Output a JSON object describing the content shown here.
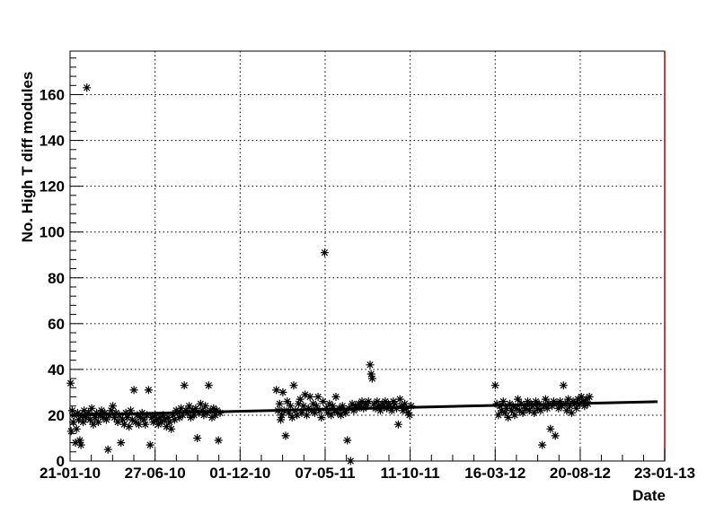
{
  "chart_data": {
    "type": "scatter",
    "xlabel": "Date",
    "ylabel": "No. High T diff modules",
    "x_tick_labels": [
      "21-01-10",
      "27-06-10",
      "01-12-10",
      "07-05-11",
      "11-10-11",
      "16-03-12",
      "20-08-12",
      "23-01-13"
    ],
    "x_ticks": [
      "2010-01-21",
      "2010-06-27",
      "2010-12-01",
      "2011-05-07",
      "2011-10-11",
      "2012-03-16",
      "2012-08-20",
      "2013-01-23"
    ],
    "xlim": [
      "2010-01-21",
      "2013-01-23"
    ],
    "y_ticks": [
      0,
      20,
      40,
      60,
      80,
      100,
      120,
      140,
      160
    ],
    "ylim": [
      0,
      179
    ],
    "grid": true,
    "marker": "*",
    "series": [
      {
        "points": [
          [
            "2010-01-22",
            34
          ],
          [
            "2010-01-23",
            13
          ],
          [
            "2010-01-25",
            22
          ],
          [
            "2010-01-27",
            17
          ],
          [
            "2010-01-29",
            20
          ],
          [
            "2010-01-31",
            8
          ],
          [
            "2010-02-02",
            14
          ],
          [
            "2010-02-04",
            21
          ],
          [
            "2010-02-06",
            18
          ],
          [
            "2010-02-08",
            9
          ],
          [
            "2010-02-10",
            7
          ],
          [
            "2010-02-12",
            20
          ],
          [
            "2010-02-14",
            17
          ],
          [
            "2010-02-16",
            22
          ],
          [
            "2010-02-19",
            19
          ],
          [
            "2010-02-21",
            163
          ],
          [
            "2010-02-24",
            21
          ],
          [
            "2010-02-27",
            18
          ],
          [
            "2010-03-02",
            23
          ],
          [
            "2010-03-05",
            16
          ],
          [
            "2010-03-08",
            19
          ],
          [
            "2010-03-11",
            21
          ],
          [
            "2010-03-14",
            17
          ],
          [
            "2010-03-17",
            20
          ],
          [
            "2010-03-20",
            22
          ],
          [
            "2010-03-23",
            19
          ],
          [
            "2010-03-26",
            21
          ],
          [
            "2010-03-29",
            18
          ],
          [
            "2010-04-01",
            5
          ],
          [
            "2010-04-04",
            20
          ],
          [
            "2010-04-07",
            22
          ],
          [
            "2010-04-10",
            24
          ],
          [
            "2010-04-13",
            19
          ],
          [
            "2010-04-16",
            21
          ],
          [
            "2010-04-19",
            17
          ],
          [
            "2010-04-22",
            20
          ],
          [
            "2010-04-25",
            8
          ],
          [
            "2010-04-28",
            18
          ],
          [
            "2010-05-01",
            16
          ],
          [
            "2010-05-04",
            21
          ],
          [
            "2010-05-07",
            19
          ],
          [
            "2010-05-10",
            15
          ],
          [
            "2010-05-13",
            22
          ],
          [
            "2010-05-16",
            18
          ],
          [
            "2010-05-19",
            31
          ],
          [
            "2010-05-22",
            17
          ],
          [
            "2010-05-25",
            20
          ],
          [
            "2010-05-28",
            16
          ],
          [
            "2010-05-31",
            19
          ],
          [
            "2010-06-03",
            21
          ],
          [
            "2010-06-06",
            18
          ],
          [
            "2010-06-09",
            16
          ],
          [
            "2010-06-12",
            20
          ],
          [
            "2010-06-15",
            31
          ],
          [
            "2010-06-18",
            7
          ],
          [
            "2010-06-21",
            19
          ],
          [
            "2010-06-24",
            17
          ],
          [
            "2010-06-27",
            20
          ],
          [
            "2010-06-30",
            18
          ],
          [
            "2010-07-03",
            16
          ],
          [
            "2010-07-06",
            19
          ],
          [
            "2010-07-09",
            17
          ],
          [
            "2010-07-12",
            20
          ],
          [
            "2010-07-15",
            18
          ],
          [
            "2010-07-18",
            15
          ],
          [
            "2010-07-21",
            19
          ],
          [
            "2010-07-24",
            17
          ],
          [
            "2010-07-27",
            14
          ],
          [
            "2010-07-30",
            20
          ],
          [
            "2010-08-02",
            18
          ],
          [
            "2010-08-05",
            22
          ],
          [
            "2010-08-08",
            21
          ],
          [
            "2010-08-11",
            19
          ],
          [
            "2010-08-14",
            23
          ],
          [
            "2010-08-17",
            20
          ],
          [
            "2010-08-20",
            33
          ],
          [
            "2010-08-23",
            22
          ],
          [
            "2010-08-26",
            21
          ],
          [
            "2010-08-29",
            24
          ],
          [
            "2010-09-01",
            19
          ],
          [
            "2010-09-04",
            22
          ],
          [
            "2010-09-07",
            20
          ],
          [
            "2010-09-10",
            23
          ],
          [
            "2010-09-13",
            10
          ],
          [
            "2010-09-16",
            21
          ],
          [
            "2010-09-19",
            25
          ],
          [
            "2010-09-22",
            22
          ],
          [
            "2010-09-25",
            20
          ],
          [
            "2010-09-28",
            24
          ],
          [
            "2010-10-01",
            21
          ],
          [
            "2010-10-04",
            33
          ],
          [
            "2010-10-07",
            22
          ],
          [
            "2010-10-10",
            19
          ],
          [
            "2010-10-13",
            23
          ],
          [
            "2010-10-16",
            20
          ],
          [
            "2010-10-19",
            22
          ],
          [
            "2010-10-22",
            9
          ],
          [
            "2010-10-25",
            21
          ],
          [
            "2011-02-06",
            31
          ],
          [
            "2011-02-09",
            22
          ],
          [
            "2011-02-12",
            25
          ],
          [
            "2011-02-14",
            18
          ],
          [
            "2011-02-16",
            20
          ],
          [
            "2011-02-18",
            30
          ],
          [
            "2011-02-20",
            22
          ],
          [
            "2011-02-23",
            11
          ],
          [
            "2011-02-26",
            26
          ],
          [
            "2011-03-01",
            21
          ],
          [
            "2011-03-04",
            24
          ],
          [
            "2011-03-07",
            19
          ],
          [
            "2011-03-10",
            33
          ],
          [
            "2011-03-13",
            22
          ],
          [
            "2011-03-16",
            20
          ],
          [
            "2011-03-19",
            25
          ],
          [
            "2011-03-22",
            27
          ],
          [
            "2011-03-25",
            21
          ],
          [
            "2011-03-28",
            24
          ],
          [
            "2011-03-31",
            29
          ],
          [
            "2011-04-03",
            20
          ],
          [
            "2011-04-06",
            23
          ],
          [
            "2011-04-09",
            28
          ],
          [
            "2011-04-12",
            22
          ],
          [
            "2011-04-15",
            25
          ],
          [
            "2011-04-18",
            21
          ],
          [
            "2011-04-21",
            24
          ],
          [
            "2011-04-24",
            28
          ],
          [
            "2011-04-27",
            22
          ],
          [
            "2011-04-30",
            19
          ],
          [
            "2011-05-03",
            26
          ],
          [
            "2011-05-06",
            91
          ],
          [
            "2011-05-09",
            23
          ],
          [
            "2011-05-12",
            21
          ],
          [
            "2011-05-15",
            25
          ],
          [
            "2011-05-18",
            20
          ],
          [
            "2011-05-21",
            24
          ],
          [
            "2011-05-24",
            22
          ],
          [
            "2011-05-27",
            28
          ],
          [
            "2011-05-30",
            21
          ],
          [
            "2011-06-02",
            23
          ],
          [
            "2011-06-05",
            20
          ],
          [
            "2011-06-08",
            24
          ],
          [
            "2011-06-11",
            22
          ],
          [
            "2011-06-14",
            21
          ],
          [
            "2011-06-17",
            9
          ],
          [
            "2011-06-20",
            23
          ],
          [
            "2011-06-23",
            0
          ],
          [
            "2011-06-26",
            25
          ],
          [
            "2011-06-29",
            22
          ],
          [
            "2011-07-02",
            24
          ],
          [
            "2011-07-05",
            23
          ],
          [
            "2011-07-08",
            25
          ],
          [
            "2011-07-11",
            24
          ],
          [
            "2011-07-14",
            26
          ],
          [
            "2011-07-17",
            23
          ],
          [
            "2011-07-20",
            25
          ],
          [
            "2011-07-23",
            24
          ],
          [
            "2011-07-26",
            26
          ],
          [
            "2011-07-29",
            42
          ],
          [
            "2011-07-31",
            38
          ],
          [
            "2011-08-02",
            36
          ],
          [
            "2011-08-05",
            25
          ],
          [
            "2011-08-08",
            23
          ],
          [
            "2011-08-11",
            26
          ],
          [
            "2011-08-14",
            24
          ],
          [
            "2011-08-17",
            22
          ],
          [
            "2011-08-20",
            25
          ],
          [
            "2011-08-23",
            24
          ],
          [
            "2011-08-26",
            26
          ],
          [
            "2011-08-29",
            23
          ],
          [
            "2011-09-01",
            25
          ],
          [
            "2011-09-04",
            24
          ],
          [
            "2011-09-07",
            22
          ],
          [
            "2011-09-10",
            26
          ],
          [
            "2011-09-13",
            25
          ],
          [
            "2011-09-16",
            23
          ],
          [
            "2011-09-19",
            16
          ],
          [
            "2011-09-22",
            27
          ],
          [
            "2011-09-25",
            24
          ],
          [
            "2011-09-28",
            22
          ],
          [
            "2011-10-01",
            25
          ],
          [
            "2011-10-04",
            23
          ],
          [
            "2011-10-07",
            21
          ],
          [
            "2011-10-10",
            20
          ],
          [
            "2011-10-13",
            24
          ],
          [
            "2012-03-16",
            33
          ],
          [
            "2012-03-19",
            25
          ],
          [
            "2012-03-22",
            20
          ],
          [
            "2012-03-25",
            24
          ],
          [
            "2012-03-28",
            22
          ],
          [
            "2012-03-31",
            26
          ],
          [
            "2012-04-03",
            21
          ],
          [
            "2012-04-06",
            23
          ],
          [
            "2012-04-09",
            19
          ],
          [
            "2012-04-12",
            25
          ],
          [
            "2012-04-15",
            22
          ],
          [
            "2012-04-18",
            24
          ],
          [
            "2012-04-21",
            20
          ],
          [
            "2012-04-24",
            23
          ],
          [
            "2012-04-27",
            27
          ],
          [
            "2012-04-30",
            22
          ],
          [
            "2012-05-03",
            25
          ],
          [
            "2012-05-06",
            21
          ],
          [
            "2012-05-09",
            24
          ],
          [
            "2012-05-12",
            23
          ],
          [
            "2012-05-15",
            26
          ],
          [
            "2012-05-18",
            22
          ],
          [
            "2012-05-21",
            25
          ],
          [
            "2012-05-24",
            24
          ],
          [
            "2012-05-27",
            21
          ],
          [
            "2012-05-30",
            26
          ],
          [
            "2012-06-02",
            23
          ],
          [
            "2012-06-05",
            25
          ],
          [
            "2012-06-08",
            22
          ],
          [
            "2012-06-11",
            7
          ],
          [
            "2012-06-14",
            24
          ],
          [
            "2012-06-17",
            27
          ],
          [
            "2012-06-20",
            23
          ],
          [
            "2012-06-23",
            25
          ],
          [
            "2012-06-26",
            14
          ],
          [
            "2012-06-29",
            24
          ],
          [
            "2012-07-02",
            26
          ],
          [
            "2012-07-05",
            11
          ],
          [
            "2012-07-08",
            25
          ],
          [
            "2012-07-11",
            23
          ],
          [
            "2012-07-14",
            26
          ],
          [
            "2012-07-17",
            24
          ],
          [
            "2012-07-20",
            33
          ],
          [
            "2012-07-23",
            25
          ],
          [
            "2012-07-26",
            22
          ],
          [
            "2012-07-29",
            27
          ],
          [
            "2012-08-01",
            24
          ],
          [
            "2012-08-04",
            21
          ],
          [
            "2012-08-07",
            26
          ],
          [
            "2012-08-10",
            25
          ],
          [
            "2012-08-13",
            23
          ],
          [
            "2012-08-16",
            27
          ],
          [
            "2012-08-19",
            25
          ],
          [
            "2012-08-22",
            28
          ],
          [
            "2012-08-25",
            26
          ],
          [
            "2012-08-28",
            24
          ],
          [
            "2012-08-31",
            27
          ],
          [
            "2012-09-03",
            25
          ],
          [
            "2012-09-06",
            28
          ]
        ]
      }
    ],
    "trend": {
      "type": "line",
      "from": [
        "2010-01-21",
        20.0
      ],
      "to": [
        "2013-01-10",
        25.9
      ]
    }
  }
}
